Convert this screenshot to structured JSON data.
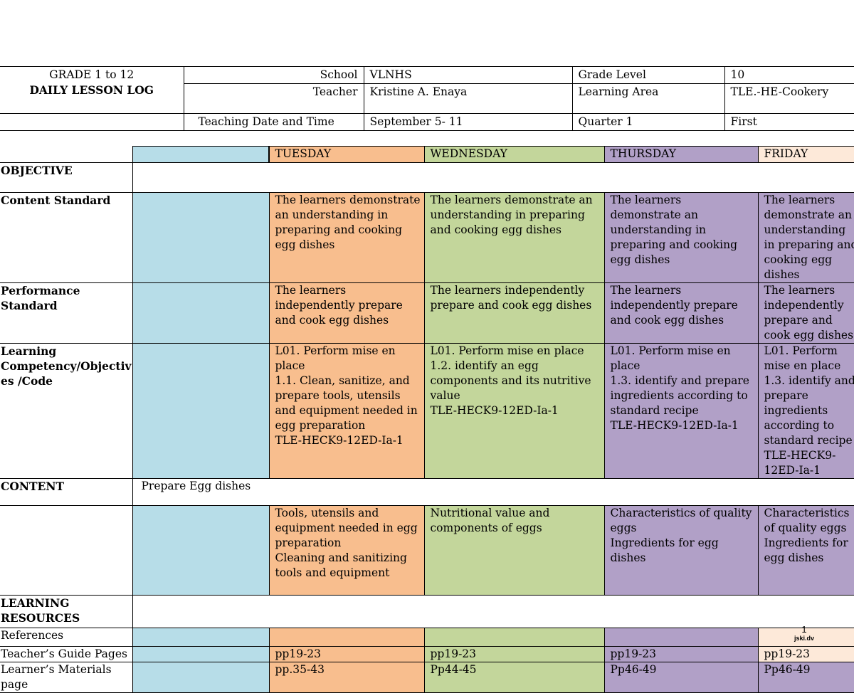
{
  "header": {
    "grade_line": "GRADE 1 to 12",
    "title": "DAILY LESSON LOG",
    "school_label": "School",
    "school_value": "VLNHS",
    "grade_level_label": "Grade Level",
    "grade_level_value": "10",
    "teacher_label": "Teacher",
    "teacher_value": "Kristine A.  Enaya",
    "learning_area_label": "Learning Area",
    "learning_area_value": "TLE.-HE-Cookery",
    "date_label": "Teaching Date and  Time",
    "date_value": "September  5- 11",
    "quarter_label": "Quarter 1",
    "quarter_value": "First"
  },
  "days": [
    "TUESDAY",
    "WEDNESDAY",
    "THURSDAY",
    "FRIDAY"
  ],
  "rows": {
    "objective": {
      "label": "OBJECTIVE"
    },
    "content_standard": {
      "label": "Content Standard",
      "cells": [
        "The learners demonstrate an understanding in preparing and cooking egg dishes",
        "The learners demonstrate an understanding in preparing and cooking egg dishes",
        "The learners demonstrate an understanding in preparing and cooking egg dishes",
        "The learners demonstrate an understanding in preparing and cooking egg dishes"
      ]
    },
    "performance_standard": {
      "label": "Performance Standard",
      "cells": [
        "The learners independently prepare and cook egg dishes",
        "The learners independently prepare and cook egg dishes",
        "The learners independently prepare and cook egg dishes",
        "The learners independently prepare and cook egg dishes"
      ]
    },
    "learning_competency": {
      "label": "Learning Competency/Objectiv es /Code",
      "cells": [
        "L01. Perform mise en place\n 1.1. Clean, sanitize, and prepare tools, utensils and equipment needed in egg preparation\nTLE-HECK9-12ED-Ia-1",
        "L01. Perform mise en place\n1.2. identify an egg components and its nutritive value\nTLE-HECK9-12ED-Ia-1",
        "L01. Perform mise en place\n1.3. identify and prepare ingredients according to standard recipe\nTLE-HECK9-12ED-Ia-1",
        "L01. Perform mise en place\n1.3. identify and prepare ingredients according to standard recipe\nTLE-HECK9-12ED-Ia-1"
      ]
    },
    "content": {
      "label": "CONTENT",
      "value": "Prepare Egg dishes"
    },
    "content_details": {
      "cells": [
        "Tools, utensils and equipment needed in egg preparation\nCleaning and sanitizing tools and equipment",
        "Nutritional value and components of eggs",
        "Characteristics of quality eggs\nIngredients for egg dishes",
        "Characteristics of quality eggs\nIngredients for egg dishes"
      ]
    },
    "learning_resources": {
      "label": "LEARNING RESOURCES"
    },
    "references": {
      "label": "References"
    },
    "teachers_guide": {
      "label": "Teacher’s Guide Pages",
      "cells": [
        "pp19-23",
        "pp19-23",
        "pp19-23",
        "pp19-23"
      ]
    },
    "learners_materials": {
      "label": "Learner’s Materials page",
      "cells": [
        "pp.35-43",
        "Pp44-45",
        "Pp46-49",
        "Pp46-49"
      ]
    }
  },
  "footer": {
    "page_number": "1",
    "watermark": "jski.dv"
  },
  "colors": {
    "monday": "#b7dde8",
    "tuesday": "#f8be8e",
    "wednesday": "#c3d69b",
    "thursday": "#b1a0c7",
    "friday": "#fde9d9"
  }
}
